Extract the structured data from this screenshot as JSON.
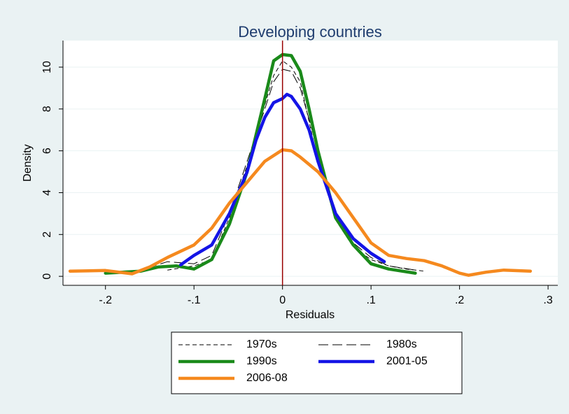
{
  "chart_data": {
    "type": "line",
    "title": "Developing countries",
    "x_label": "Residuals",
    "y_label": "Density",
    "xlim": [
      -0.248,
      0.311
    ],
    "ylim": [
      -0.43,
      11.27
    ],
    "xticks": [
      {
        "value": -0.2,
        "label": "-.2"
      },
      {
        "value": -0.1,
        "label": "-.1"
      },
      0,
      {
        "value": 0.1,
        "label": ".1"
      },
      {
        "value": 0.2,
        "label": ".2"
      },
      {
        "value": 0.3,
        "label": ".3"
      }
    ],
    "yticks": [
      0,
      2,
      4,
      6,
      8,
      10
    ],
    "grid": true,
    "xline": {
      "value": 0,
      "color": "#990000"
    },
    "series": [
      {
        "name": "1970s",
        "color": "#000000",
        "width": 1,
        "dash": "6 4",
        "x": [
          -0.13,
          -0.1,
          -0.08,
          -0.06,
          -0.04,
          -0.02,
          -0.01,
          0,
          0.01,
          0.02,
          0.04,
          0.06,
          0.08,
          0.1,
          0.12,
          0.14,
          0.16
        ],
        "values": [
          0.3,
          0.5,
          0.8,
          2.8,
          5.3,
          8.2,
          9.6,
          10.3,
          10.0,
          9.3,
          5.5,
          2.7,
          1.4,
          0.8,
          0.5,
          0.35,
          0.25
        ]
      },
      {
        "name": "1980s",
        "color": "#000000",
        "width": 1,
        "dash": "14 6",
        "x": [
          -0.2,
          -0.16,
          -0.13,
          -0.1,
          -0.08,
          -0.06,
          -0.04,
          -0.02,
          -0.01,
          0,
          0.01,
          0.02,
          0.04,
          0.06,
          0.08,
          0.1,
          0.12,
          0.15
        ],
        "values": [
          0.2,
          0.3,
          0.7,
          0.6,
          1.0,
          3.0,
          5.5,
          8.0,
          9.3,
          9.9,
          9.8,
          9.0,
          6.0,
          3.0,
          1.6,
          0.9,
          0.5,
          0.3
        ]
      },
      {
        "name": "1990s",
        "color": "#1a8a1a",
        "width": 4.5,
        "x": [
          -0.2,
          -0.16,
          -0.14,
          -0.12,
          -0.1,
          -0.08,
          -0.06,
          -0.04,
          -0.02,
          -0.01,
          0,
          0.01,
          0.02,
          0.03,
          0.04,
          0.06,
          0.08,
          0.1,
          0.12,
          0.15
        ],
        "values": [
          0.15,
          0.25,
          0.45,
          0.5,
          0.35,
          0.8,
          2.5,
          5.0,
          8.5,
          10.3,
          10.6,
          10.55,
          9.8,
          8.0,
          6.0,
          2.8,
          1.5,
          0.6,
          0.35,
          0.15
        ]
      },
      {
        "name": "2001-05",
        "color": "#1414e6",
        "width": 4.5,
        "x": [
          -0.115,
          -0.1,
          -0.08,
          -0.06,
          -0.04,
          -0.03,
          -0.02,
          -0.01,
          0,
          0.005,
          0.01,
          0.02,
          0.03,
          0.04,
          0.06,
          0.08,
          0.1,
          0.115
        ],
        "values": [
          0.55,
          1.0,
          1.5,
          3.0,
          5.0,
          6.5,
          7.6,
          8.3,
          8.5,
          8.7,
          8.6,
          8.0,
          7.0,
          5.5,
          3.0,
          1.8,
          1.1,
          0.7
        ]
      },
      {
        "name": "2006-08",
        "color": "#f5891e",
        "width": 4.5,
        "x": [
          -0.24,
          -0.2,
          -0.17,
          -0.15,
          -0.13,
          -0.1,
          -0.08,
          -0.06,
          -0.04,
          -0.02,
          0,
          0.01,
          0.02,
          0.04,
          0.06,
          0.08,
          0.1,
          0.12,
          0.14,
          0.16,
          0.18,
          0.2,
          0.21,
          0.23,
          0.25,
          0.28
        ],
        "values": [
          0.25,
          0.28,
          0.12,
          0.45,
          0.9,
          1.5,
          2.3,
          3.5,
          4.5,
          5.5,
          6.05,
          6.0,
          5.7,
          5.0,
          4.0,
          2.8,
          1.6,
          1.0,
          0.85,
          0.75,
          0.5,
          0.15,
          0.05,
          0.2,
          0.3,
          0.25
        ]
      }
    ]
  }
}
